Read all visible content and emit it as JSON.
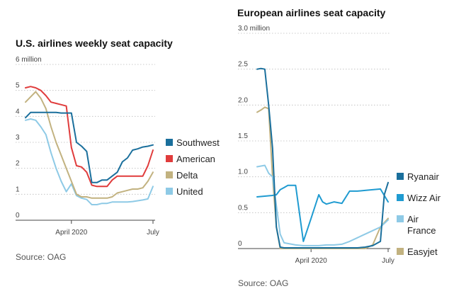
{
  "chart_data": [
    {
      "id": "us",
      "type": "line",
      "title": "U.S. airlines weekly seat capacity",
      "source": "Source: OAG",
      "ylabel_unit": "6 million",
      "ylim": [
        0,
        6
      ],
      "y_ticks": [
        "6 million",
        "5",
        "4",
        "3",
        "2",
        "1",
        "0"
      ],
      "y_tick_values": [
        6,
        5,
        4,
        3,
        2,
        1,
        0
      ],
      "x_ticks": [
        "April 2020",
        "July"
      ],
      "x_tick_values": [
        9,
        25
      ],
      "xlim": [
        0,
        25
      ],
      "grid": true,
      "legend_position": "right",
      "series": [
        {
          "name": "Southwest",
          "color": "#1a6f9c",
          "x": [
            0,
            1,
            2,
            3,
            4,
            5,
            6,
            7,
            8,
            9,
            10,
            11,
            12,
            13,
            14,
            15,
            16,
            17,
            18,
            19,
            20,
            21,
            22,
            23,
            24,
            25
          ],
          "values": [
            3.95,
            4.15,
            4.15,
            4.15,
            4.15,
            4.15,
            4.15,
            4.13,
            4.13,
            4.13,
            3.0,
            2.85,
            2.65,
            1.45,
            1.45,
            1.55,
            1.55,
            1.7,
            1.85,
            2.25,
            2.4,
            2.7,
            2.75,
            2.82,
            2.85,
            2.9
          ]
        },
        {
          "name": "American",
          "color": "#e03c3c",
          "x": [
            0,
            1,
            2,
            3,
            4,
            5,
            6,
            7,
            8,
            9,
            10,
            11,
            12,
            13,
            14,
            15,
            16,
            17,
            18,
            19,
            20,
            21,
            22,
            23,
            24,
            25
          ],
          "values": [
            5.1,
            5.15,
            5.1,
            5.0,
            4.8,
            4.55,
            4.5,
            4.45,
            4.4,
            2.8,
            2.1,
            2.05,
            1.85,
            1.35,
            1.3,
            1.3,
            1.3,
            1.55,
            1.7,
            1.7,
            1.7,
            1.7,
            1.7,
            1.7,
            2.1,
            2.7
          ]
        },
        {
          "name": "Delta",
          "color": "#c2b280",
          "x": [
            0,
            1,
            2,
            3,
            4,
            5,
            6,
            7,
            8,
            9,
            10,
            11,
            12,
            13,
            14,
            15,
            16,
            17,
            18,
            19,
            20,
            21,
            22,
            23,
            24,
            25
          ],
          "values": [
            4.55,
            4.75,
            4.95,
            4.7,
            4.3,
            3.6,
            3.0,
            2.5,
            2.0,
            1.5,
            1.0,
            0.9,
            0.9,
            0.85,
            0.85,
            0.85,
            0.85,
            0.9,
            1.05,
            1.1,
            1.15,
            1.2,
            1.2,
            1.25,
            1.5,
            1.85
          ]
        },
        {
          "name": "United",
          "color": "#8ecae6",
          "x": [
            0,
            1,
            2,
            3,
            4,
            5,
            6,
            7,
            8,
            9,
            10,
            11,
            12,
            13,
            14,
            15,
            16,
            17,
            18,
            19,
            20,
            21,
            22,
            23,
            24,
            25
          ],
          "values": [
            3.85,
            3.9,
            3.85,
            3.6,
            3.3,
            2.6,
            2.0,
            1.5,
            1.1,
            1.4,
            0.95,
            0.85,
            0.8,
            0.6,
            0.6,
            0.65,
            0.65,
            0.7,
            0.7,
            0.7,
            0.7,
            0.72,
            0.75,
            0.78,
            0.82,
            1.3
          ]
        }
      ]
    },
    {
      "id": "eu",
      "type": "line",
      "title": "European airlines seat capacity",
      "source": "Source: OAG",
      "ylim": [
        0,
        3
      ],
      "y_ticks": [
        "3.0 million",
        "2.5",
        "2.0",
        "1.5",
        "1.0",
        "0.5",
        "0"
      ],
      "y_tick_values": [
        3,
        2.5,
        2,
        1.5,
        1,
        0.5,
        0
      ],
      "x_ticks": [
        "April 2020",
        "July"
      ],
      "x_tick_values": [
        7,
        17
      ],
      "xlim": [
        0,
        17
      ],
      "grid": true,
      "legend_position": "right",
      "series": [
        {
          "name": "Ryanair",
          "color": "#1a6f9c",
          "x": [
            0,
            0.5,
            1,
            1.5,
            2,
            2.5,
            3,
            3.5,
            4,
            4.5,
            5,
            6,
            7,
            8,
            9,
            10,
            11,
            12,
            13,
            14,
            15,
            16,
            16.5,
            17
          ],
          "values": [
            2.5,
            2.51,
            2.5,
            2.0,
            1.4,
            0.3,
            0.02,
            0.01,
            0.01,
            0.01,
            0.01,
            0.01,
            0.01,
            0.01,
            0.01,
            0.01,
            0.01,
            0.01,
            0.01,
            0.02,
            0.04,
            0.1,
            0.75,
            0.92
          ]
        },
        {
          "name": "Wizz Air",
          "color": "#1f9bd1",
          "x": [
            0,
            1,
            2,
            2.5,
            3,
            3.5,
            4,
            4.5,
            5,
            6,
            7,
            8,
            8.5,
            9,
            10,
            11,
            12,
            12.5,
            13,
            14,
            15,
            16,
            17
          ],
          "values": [
            0.72,
            0.73,
            0.74,
            0.75,
            0.82,
            0.85,
            0.88,
            0.88,
            0.88,
            0.1,
            0.42,
            0.75,
            0.65,
            0.62,
            0.65,
            0.63,
            0.8,
            0.8,
            0.8,
            0.81,
            0.82,
            0.83,
            0.65
          ]
        },
        {
          "name": "Air France",
          "color": "#8ecae6",
          "x": [
            0,
            0.5,
            1,
            1.5,
            2,
            3,
            3.5,
            4,
            5,
            6,
            7,
            8,
            9,
            10,
            11,
            12,
            13,
            14,
            15,
            16,
            17
          ],
          "values": [
            1.14,
            1.15,
            1.16,
            1.05,
            1.0,
            0.2,
            0.08,
            0.07,
            0.05,
            0.04,
            0.04,
            0.04,
            0.05,
            0.05,
            0.06,
            0.1,
            0.15,
            0.2,
            0.25,
            0.3,
            0.4
          ]
        },
        {
          "name": "Easyjet",
          "color": "#c2b280",
          "x": [
            0,
            0.5,
            1,
            1.5,
            2,
            2.5,
            3,
            3.5,
            4,
            5,
            6,
            7,
            8,
            9,
            10,
            11,
            12,
            13,
            14,
            15,
            16,
            17
          ],
          "values": [
            1.9,
            1.93,
            1.97,
            1.95,
            1.0,
            0.3,
            0.0,
            0.0,
            0.0,
            0.0,
            0.0,
            0.0,
            0.0,
            0.0,
            0.0,
            0.0,
            0.0,
            0.0,
            0.0,
            0.05,
            0.3,
            0.42
          ]
        }
      ]
    }
  ]
}
